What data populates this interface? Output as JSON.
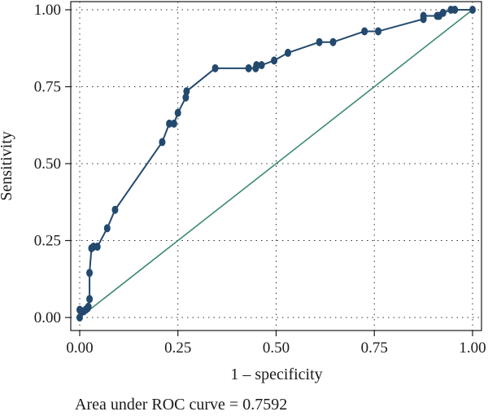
{
  "chart_data": {
    "type": "line",
    "title": "",
    "xlabel": "1 – specificity",
    "ylabel": "Sensitivity",
    "xlim": [
      0,
      1
    ],
    "ylim": [
      0,
      1
    ],
    "xticks": [
      "0.00",
      "0.25",
      "0.50",
      "0.75",
      "1.00"
    ],
    "yticks": [
      "0.00",
      "0.25",
      "0.50",
      "0.75",
      "1.00"
    ],
    "grid": "dotted",
    "legend": "none",
    "series": [
      {
        "color": "#23496e",
        "markers": true,
        "x": [
          0.0,
          0.0,
          0.005,
          0.01,
          0.015,
          0.02,
          0.022,
          0.025,
          0.025,
          0.03,
          0.035,
          0.045,
          0.07,
          0.09,
          0.21,
          0.228,
          0.24,
          0.25,
          0.27,
          0.272,
          0.345,
          0.43,
          0.448,
          0.45,
          0.463,
          0.495,
          0.53,
          0.61,
          0.645,
          0.725,
          0.76,
          0.875,
          0.875,
          0.91,
          0.915,
          0.925,
          0.945,
          0.955,
          1.0
        ],
        "y": [
          0.0,
          0.025,
          0.02,
          0.02,
          0.025,
          0.03,
          0.035,
          0.06,
          0.145,
          0.225,
          0.23,
          0.23,
          0.29,
          0.35,
          0.57,
          0.63,
          0.63,
          0.665,
          0.715,
          0.735,
          0.81,
          0.81,
          0.81,
          0.82,
          0.82,
          0.835,
          0.86,
          0.895,
          0.895,
          0.93,
          0.93,
          0.97,
          0.98,
          0.98,
          0.98,
          0.99,
          1.0,
          1.0,
          1.0
        ]
      },
      {
        "color": "#3c8a6e",
        "markers": false,
        "x": [
          0,
          1
        ],
        "y": [
          0,
          1
        ]
      }
    ],
    "annotations": [
      "Area under ROC curve = 0.7592"
    ]
  },
  "caption": "Area under ROC curve = 0.7592"
}
